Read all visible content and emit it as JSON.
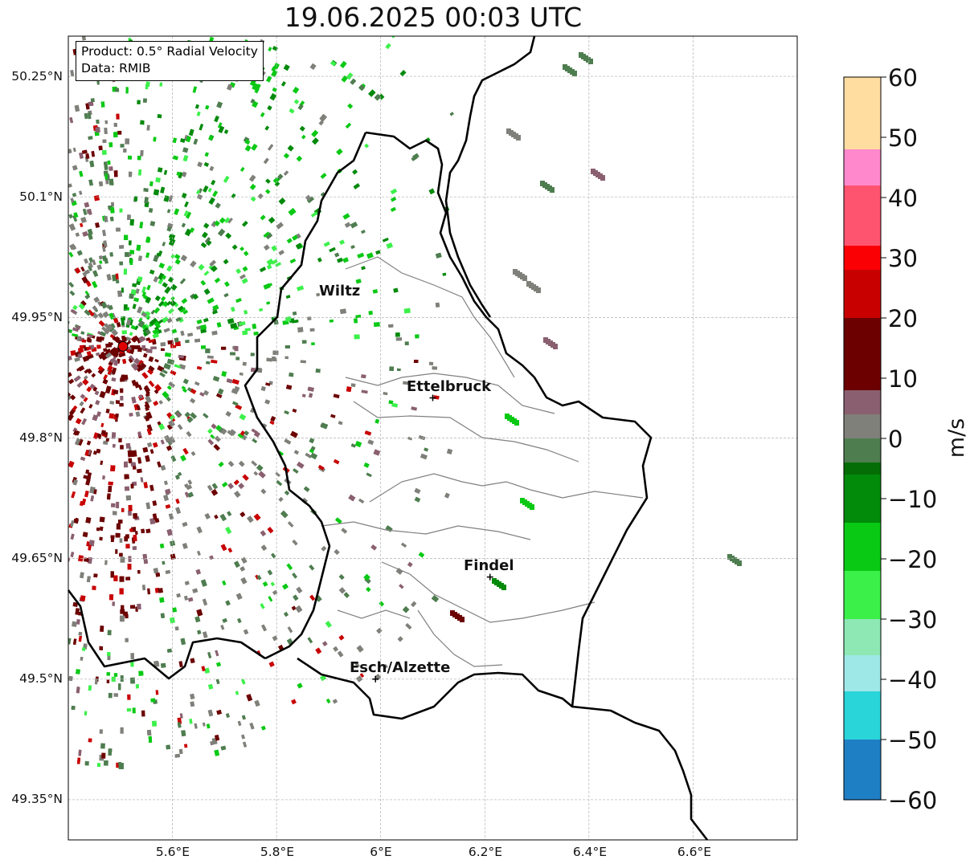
{
  "title": "19.06.2025 00:03 UTC",
  "info": {
    "product": "Product: 0.5° Radial Velocity",
    "data": "Data: RMIB"
  },
  "map": {
    "lon_range": [
      5.4,
      6.8
    ],
    "lat_range": [
      49.3,
      50.3
    ],
    "lat_ticks": [
      "50.25°N",
      "50.1°N",
      "49.95°N",
      "49.8°N",
      "49.65°N",
      "49.5°N",
      "49.35°N"
    ],
    "lon_ticks": [
      "5.6°E",
      "5.8°E",
      "6°E",
      "6.2°E",
      "6.4°E",
      "6.6°E"
    ],
    "grid": true,
    "radar_site": {
      "lon": 5.505,
      "lat": 49.914
    },
    "cities": [
      {
        "name": "Wiltz",
        "lon": 5.93,
        "lat": 49.97
      },
      {
        "name": "Ettelbruck",
        "lon": 6.1,
        "lat": 49.85
      },
      {
        "name": "Findel",
        "lon": 6.21,
        "lat": 49.627
      },
      {
        "name": "Esch/Alzette",
        "lon": 5.99,
        "lat": 49.5
      }
    ]
  },
  "colorbar": {
    "label": "m/s",
    "min": -60,
    "max": 60,
    "ticks": [
      "60",
      "50",
      "40",
      "30",
      "20",
      "10",
      "0",
      "−10",
      "−20",
      "−30",
      "−40",
      "−50",
      "−60"
    ]
  }
}
